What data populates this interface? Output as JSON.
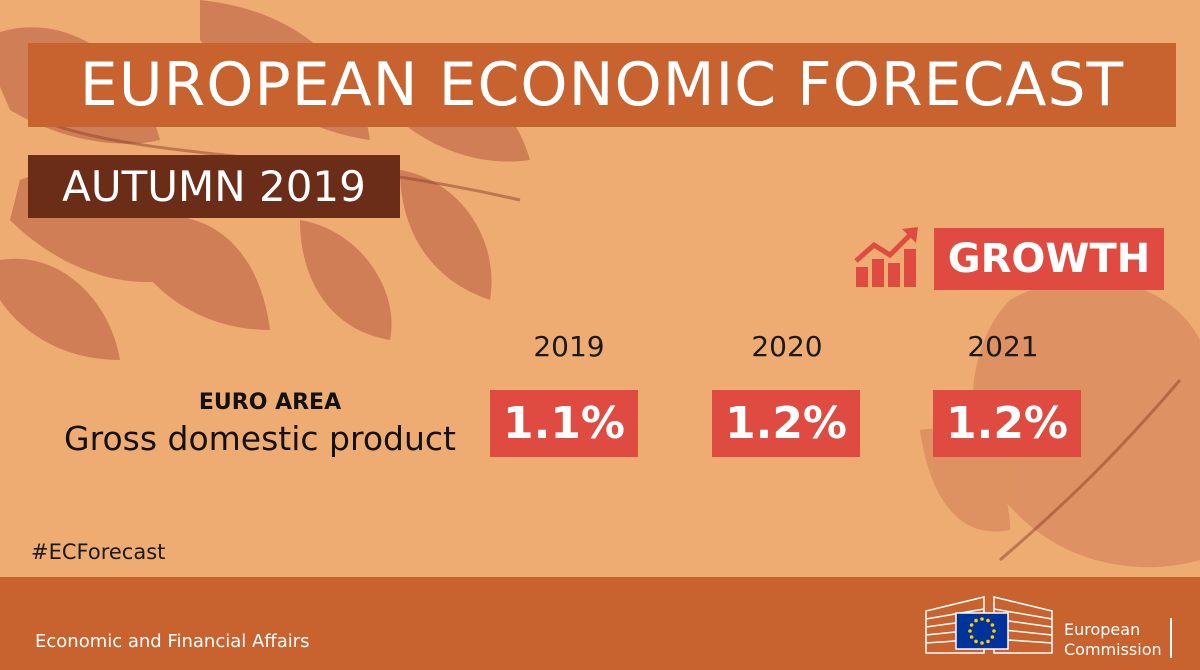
{
  "title": "EUROPEAN ECONOMIC FORECAST",
  "subtitle": "AUTUMN 2019",
  "section_label": "GROWTH",
  "years": [
    "2019",
    "2020",
    "2021"
  ],
  "row_label_top": "EURO AREA",
  "row_label": "Gross domestic product",
  "values": [
    "1.1%",
    "1.2%",
    "1.2%"
  ],
  "hashtag": "#ECForecast",
  "footer_text": "Economic and Financial Affairs",
  "logo": {
    "line1": "European",
    "line2": "Commission"
  },
  "colors": {
    "background": "#efac72",
    "title_bg": "#c8622e",
    "subtitle_bg": "#6b2d18",
    "accent_red": "#e04b41",
    "footer_bg": "#c8622e"
  },
  "icons": [
    "growth-chart-icon",
    "eu-flag-icon",
    "berlaymont-building-icon"
  ]
}
